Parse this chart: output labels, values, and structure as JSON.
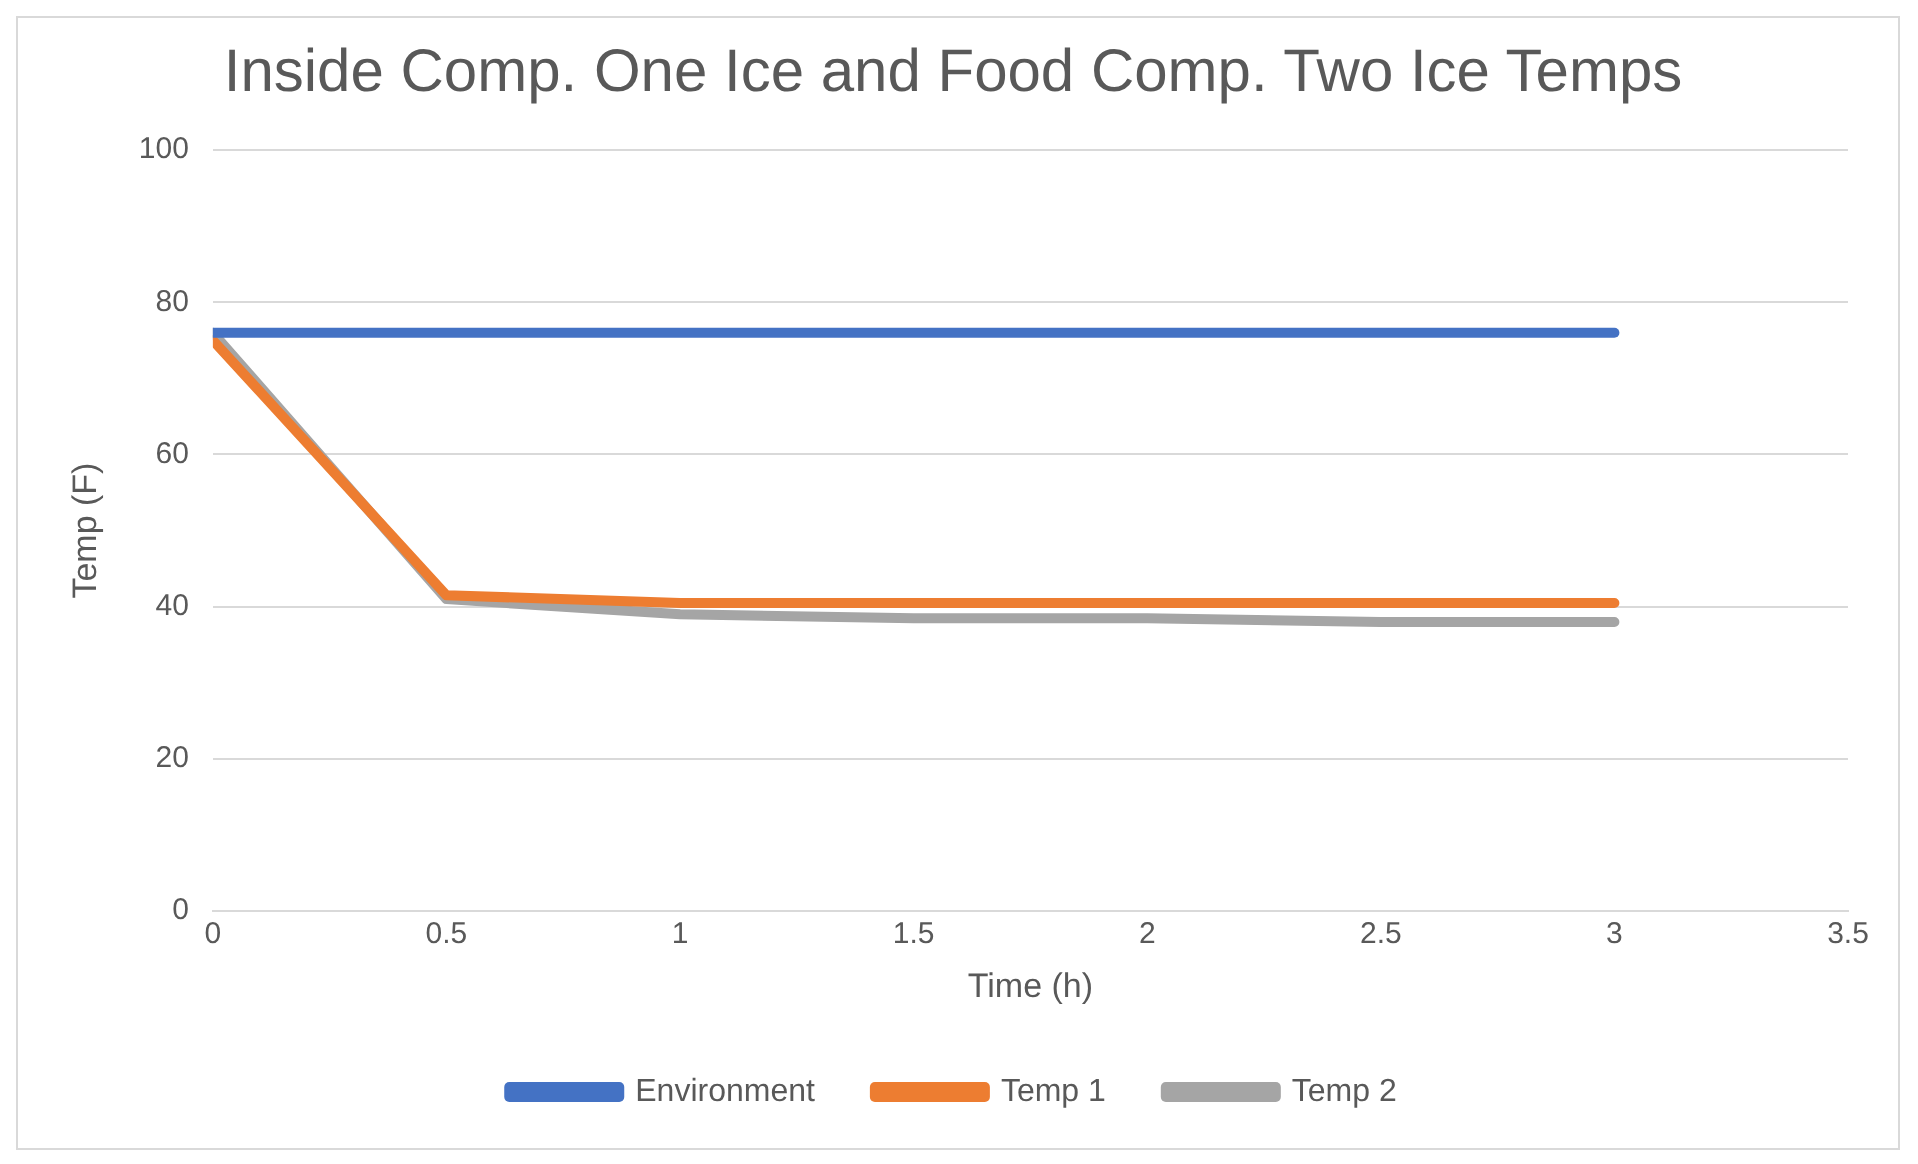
{
  "chart_data": {
    "type": "line",
    "title": "Inside Comp. One Ice and Food Comp. Two Ice Temps",
    "xlabel": "Time (h)",
    "ylabel": "Temp (F)",
    "x": [
      0,
      0.5,
      1,
      1.5,
      2,
      2.5,
      3
    ],
    "series": [
      {
        "name": "Environment",
        "color": "#4472c4",
        "values": [
          76,
          76,
          76,
          76,
          76,
          76,
          76
        ]
      },
      {
        "name": "Temp 1",
        "color": "#ed7d31",
        "values": [
          75,
          41.5,
          40.5,
          40.5,
          40.5,
          40.5,
          40.5
        ]
      },
      {
        "name": "Temp 2",
        "color": "#a5a5a5",
        "values": [
          76,
          41,
          39,
          38.5,
          38.5,
          38,
          38
        ]
      }
    ],
    "xlim": [
      0,
      3.5
    ],
    "xticks": [
      0,
      0.5,
      1,
      1.5,
      2,
      2.5,
      3,
      3.5
    ],
    "ylim": [
      0,
      100
    ],
    "yticks": [
      0,
      20,
      40,
      60,
      80,
      100
    ],
    "grid": "y",
    "legend": "bottom",
    "marker": "none",
    "line_style": "solid"
  }
}
